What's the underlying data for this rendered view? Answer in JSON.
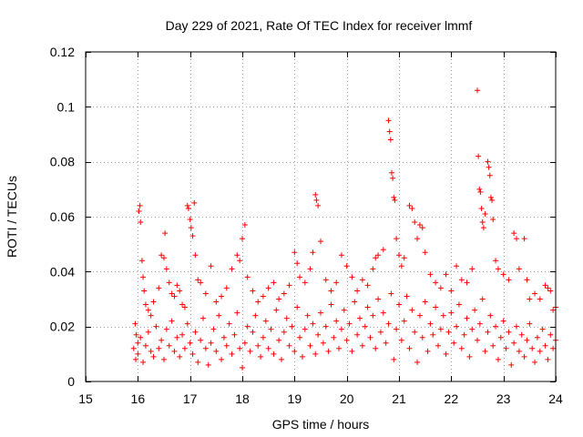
{
  "chart_data": {
    "type": "scatter",
    "title": "Day 229 of 2021, Rate Of TEC Index for receiver lmmf",
    "xlabel": "GPS time / hours",
    "ylabel": "ROTI / TECUs",
    "xlim": [
      15,
      24
    ],
    "ylim": [
      0,
      0.12
    ],
    "xticks": [
      "15",
      "16",
      "17",
      "18",
      "19",
      "20",
      "21",
      "22",
      "23",
      "24"
    ],
    "yticks": [
      "0",
      "0.02",
      "0.04",
      "0.06",
      "0.08",
      "0.1",
      "0.12"
    ],
    "grid": true,
    "marker": "+",
    "series": [
      {
        "name": "ROTI",
        "color": "#ff0000",
        "points": [
          [
            15.95,
            0.021
          ],
          [
            15.97,
            0.017
          ],
          [
            16.0,
            0.014
          ],
          [
            16.02,
            0.062
          ],
          [
            16.04,
            0.064
          ],
          [
            16.05,
            0.058
          ],
          [
            16.08,
            0.044
          ],
          [
            16.1,
            0.038
          ],
          [
            16.12,
            0.033
          ],
          [
            16.15,
            0.028
          ],
          [
            16.2,
            0.026
          ],
          [
            16.25,
            0.024
          ],
          [
            16.3,
            0.029
          ],
          [
            16.4,
            0.034
          ],
          [
            16.45,
            0.046
          ],
          [
            16.5,
            0.045
          ],
          [
            16.52,
            0.054
          ],
          [
            16.55,
            0.041
          ],
          [
            16.6,
            0.036
          ],
          [
            16.65,
            0.032
          ],
          [
            16.7,
            0.031
          ],
          [
            16.75,
            0.035
          ],
          [
            16.8,
            0.033
          ],
          [
            16.85,
            0.028
          ],
          [
            16.9,
            0.027
          ],
          [
            16.95,
            0.064
          ],
          [
            16.97,
            0.063
          ],
          [
            17.0,
            0.059
          ],
          [
            17.02,
            0.056
          ],
          [
            17.05,
            0.053
          ],
          [
            17.08,
            0.065
          ],
          [
            17.1,
            0.046
          ],
          [
            17.15,
            0.037
          ],
          [
            17.2,
            0.036
          ],
          [
            17.3,
            0.032
          ],
          [
            17.4,
            0.042
          ],
          [
            17.5,
            0.029
          ],
          [
            17.6,
            0.031
          ],
          [
            17.7,
            0.034
          ],
          [
            17.8,
            0.041
          ],
          [
            17.9,
            0.046
          ],
          [
            17.95,
            0.044
          ],
          [
            18.0,
            0.052
          ],
          [
            18.05,
            0.057
          ],
          [
            18.1,
            0.038
          ],
          [
            18.2,
            0.033
          ],
          [
            18.3,
            0.029
          ],
          [
            18.4,
            0.031
          ],
          [
            18.5,
            0.034
          ],
          [
            18.6,
            0.036
          ],
          [
            18.7,
            0.03
          ],
          [
            18.8,
            0.032
          ],
          [
            18.9,
            0.035
          ],
          [
            19.0,
            0.047
          ],
          [
            19.05,
            0.043
          ],
          [
            19.1,
            0.038
          ],
          [
            19.2,
            0.036
          ],
          [
            19.3,
            0.041
          ],
          [
            19.35,
            0.047
          ],
          [
            19.4,
            0.068
          ],
          [
            19.42,
            0.066
          ],
          [
            19.45,
            0.064
          ],
          [
            19.5,
            0.051
          ],
          [
            19.6,
            0.037
          ],
          [
            19.7,
            0.033
          ],
          [
            19.8,
            0.036
          ],
          [
            19.9,
            0.046
          ],
          [
            20.0,
            0.042
          ],
          [
            20.1,
            0.038
          ],
          [
            20.2,
            0.033
          ],
          [
            20.3,
            0.037
          ],
          [
            20.4,
            0.035
          ],
          [
            20.5,
            0.041
          ],
          [
            20.55,
            0.045
          ],
          [
            20.6,
            0.046
          ],
          [
            20.7,
            0.048
          ],
          [
            20.8,
            0.095
          ],
          [
            20.82,
            0.091
          ],
          [
            20.84,
            0.088
          ],
          [
            20.86,
            0.076
          ],
          [
            20.88,
            0.074
          ],
          [
            20.9,
            0.067
          ],
          [
            20.92,
            0.066
          ],
          [
            20.95,
            0.052
          ],
          [
            21.0,
            0.046
          ],
          [
            21.05,
            0.042
          ],
          [
            21.1,
            0.045
          ],
          [
            21.2,
            0.064
          ],
          [
            21.25,
            0.063
          ],
          [
            21.3,
            0.058
          ],
          [
            21.35,
            0.052
          ],
          [
            21.4,
            0.057
          ],
          [
            21.45,
            0.056
          ],
          [
            21.5,
            0.047
          ],
          [
            21.6,
            0.039
          ],
          [
            21.7,
            0.036
          ],
          [
            21.8,
            0.034
          ],
          [
            21.9,
            0.039
          ],
          [
            22.0,
            0.033
          ],
          [
            22.1,
            0.042
          ],
          [
            22.2,
            0.037
          ],
          [
            22.3,
            0.036
          ],
          [
            22.4,
            0.041
          ],
          [
            22.5,
            0.106
          ],
          [
            22.52,
            0.082
          ],
          [
            22.54,
            0.07
          ],
          [
            22.56,
            0.069
          ],
          [
            22.58,
            0.063
          ],
          [
            22.6,
            0.058
          ],
          [
            22.62,
            0.056
          ],
          [
            22.65,
            0.061
          ],
          [
            22.7,
            0.08
          ],
          [
            22.72,
            0.078
          ],
          [
            22.74,
            0.075
          ],
          [
            22.76,
            0.067
          ],
          [
            22.78,
            0.066
          ],
          [
            22.8,
            0.059
          ],
          [
            22.85,
            0.044
          ],
          [
            22.9,
            0.041
          ],
          [
            23.0,
            0.039
          ],
          [
            23.1,
            0.037
          ],
          [
            23.2,
            0.054
          ],
          [
            23.25,
            0.052
          ],
          [
            23.3,
            0.041
          ],
          [
            23.4,
            0.052
          ],
          [
            23.45,
            0.037
          ],
          [
            23.5,
            0.03
          ],
          [
            23.6,
            0.032
          ],
          [
            23.7,
            0.03
          ],
          [
            23.8,
            0.035
          ],
          [
            23.85,
            0.034
          ],
          [
            23.9,
            0.033
          ],
          [
            23.95,
            0.026
          ],
          [
            24.0,
            0.027
          ],
          [
            15.92,
            0.012
          ],
          [
            15.96,
            0.008
          ],
          [
            16.0,
            0.01
          ],
          [
            16.05,
            0.016
          ],
          [
            16.1,
            0.007
          ],
          [
            16.15,
            0.013
          ],
          [
            16.2,
            0.018
          ],
          [
            16.25,
            0.011
          ],
          [
            16.3,
            0.009
          ],
          [
            16.35,
            0.02
          ],
          [
            16.4,
            0.012
          ],
          [
            16.45,
            0.015
          ],
          [
            16.5,
            0.008
          ],
          [
            16.55,
            0.019
          ],
          [
            16.6,
            0.013
          ],
          [
            16.65,
            0.022
          ],
          [
            16.7,
            0.011
          ],
          [
            16.75,
            0.016
          ],
          [
            16.8,
            0.009
          ],
          [
            16.85,
            0.017
          ],
          [
            16.9,
            0.012
          ],
          [
            16.95,
            0.021
          ],
          [
            17.0,
            0.014
          ],
          [
            17.05,
            0.01
          ],
          [
            17.1,
            0.018
          ],
          [
            17.15,
            0.007
          ],
          [
            17.2,
            0.015
          ],
          [
            17.25,
            0.023
          ],
          [
            17.3,
            0.012
          ],
          [
            17.35,
            0.006
          ],
          [
            17.4,
            0.014
          ],
          [
            17.45,
            0.019
          ],
          [
            17.5,
            0.011
          ],
          [
            17.55,
            0.024
          ],
          [
            17.6,
            0.008
          ],
          [
            17.65,
            0.016
          ],
          [
            17.7,
            0.013
          ],
          [
            17.75,
            0.021
          ],
          [
            17.8,
            0.01
          ],
          [
            17.85,
            0.017
          ],
          [
            17.9,
            0.025
          ],
          [
            17.95,
            0.012
          ],
          [
            18.0,
            0.005
          ],
          [
            18.05,
            0.014
          ],
          [
            18.1,
            0.02
          ],
          [
            18.15,
            0.011
          ],
          [
            18.2,
            0.018
          ],
          [
            18.25,
            0.024
          ],
          [
            18.3,
            0.013
          ],
          [
            18.35,
            0.009
          ],
          [
            18.4,
            0.016
          ],
          [
            18.45,
            0.022
          ],
          [
            18.5,
            0.012
          ],
          [
            18.55,
            0.019
          ],
          [
            18.6,
            0.01
          ],
          [
            18.65,
            0.026
          ],
          [
            18.7,
            0.015
          ],
          [
            18.75,
            0.008
          ],
          [
            18.8,
            0.018
          ],
          [
            18.85,
            0.023
          ],
          [
            18.9,
            0.013
          ],
          [
            18.95,
            0.02
          ],
          [
            19.0,
            0.011
          ],
          [
            19.05,
            0.027
          ],
          [
            19.1,
            0.016
          ],
          [
            19.15,
            0.009
          ],
          [
            19.2,
            0.019
          ],
          [
            19.25,
            0.024
          ],
          [
            19.3,
            0.013
          ],
          [
            19.35,
            0.021
          ],
          [
            19.4,
            0.01
          ],
          [
            19.45,
            0.017
          ],
          [
            19.5,
            0.025
          ],
          [
            19.55,
            0.014
          ],
          [
            19.6,
            0.02
          ],
          [
            19.65,
            0.011
          ],
          [
            19.7,
            0.028
          ],
          [
            19.75,
            0.016
          ],
          [
            19.8,
            0.022
          ],
          [
            19.85,
            0.012
          ],
          [
            19.9,
            0.019
          ],
          [
            19.95,
            0.026
          ],
          [
            20.0,
            0.015
          ],
          [
            20.05,
            0.021
          ],
          [
            20.1,
            0.011
          ],
          [
            20.15,
            0.029
          ],
          [
            20.2,
            0.017
          ],
          [
            20.25,
            0.023
          ],
          [
            20.3,
            0.013
          ],
          [
            20.35,
            0.02
          ],
          [
            20.4,
            0.027
          ],
          [
            20.45,
            0.016
          ],
          [
            20.5,
            0.024
          ],
          [
            20.55,
            0.012
          ],
          [
            20.6,
            0.03
          ],
          [
            20.65,
            0.018
          ],
          [
            20.7,
            0.025
          ],
          [
            20.75,
            0.014
          ],
          [
            20.8,
            0.021
          ],
          [
            20.85,
            0.032
          ],
          [
            20.9,
            0.008
          ],
          [
            20.95,
            0.019
          ],
          [
            21.0,
            0.028
          ],
          [
            21.05,
            0.015
          ],
          [
            21.1,
            0.022
          ],
          [
            21.15,
            0.031
          ],
          [
            21.2,
            0.012
          ],
          [
            21.25,
            0.026
          ],
          [
            21.3,
            0.018
          ],
          [
            21.35,
            0.007
          ],
          [
            21.4,
            0.024
          ],
          [
            21.45,
            0.016
          ],
          [
            21.5,
            0.029
          ],
          [
            21.55,
            0.011
          ],
          [
            21.6,
            0.021
          ],
          [
            21.65,
            0.017
          ],
          [
            21.7,
            0.027
          ],
          [
            21.75,
            0.013
          ],
          [
            21.8,
            0.019
          ],
          [
            21.85,
            0.024
          ],
          [
            21.9,
            0.01
          ],
          [
            21.95,
            0.018
          ],
          [
            22.0,
            0.025
          ],
          [
            22.05,
            0.014
          ],
          [
            22.1,
            0.02
          ],
          [
            22.15,
            0.028
          ],
          [
            22.2,
            0.012
          ],
          [
            22.25,
            0.017
          ],
          [
            22.3,
            0.023
          ],
          [
            22.35,
            0.009
          ],
          [
            22.4,
            0.019
          ],
          [
            22.45,
            0.026
          ],
          [
            22.5,
            0.015
          ],
          [
            22.55,
            0.021
          ],
          [
            22.6,
            0.03
          ],
          [
            22.65,
            0.011
          ],
          [
            22.7,
            0.018
          ],
          [
            22.75,
            0.024
          ],
          [
            22.8,
            0.013
          ],
          [
            22.85,
            0.02
          ],
          [
            22.9,
            0.008
          ],
          [
            22.95,
            0.016
          ],
          [
            23.0,
            0.022
          ],
          [
            23.05,
            0.012
          ],
          [
            23.1,
            0.018
          ],
          [
            23.15,
            0.006
          ],
          [
            23.2,
            0.014
          ],
          [
            23.25,
            0.02
          ],
          [
            23.3,
            0.011
          ],
          [
            23.35,
            0.017
          ],
          [
            23.4,
            0.009
          ],
          [
            23.45,
            0.015
          ],
          [
            23.5,
            0.021
          ],
          [
            23.55,
            0.012
          ],
          [
            23.6,
            0.007
          ],
          [
            23.65,
            0.016
          ],
          [
            23.7,
            0.011
          ],
          [
            23.75,
            0.019
          ],
          [
            23.8,
            0.013
          ],
          [
            23.85,
            0.008
          ],
          [
            23.9,
            0.017
          ],
          [
            23.95,
            0.012
          ],
          [
            24.0,
            0.015
          ]
        ]
      }
    ]
  }
}
